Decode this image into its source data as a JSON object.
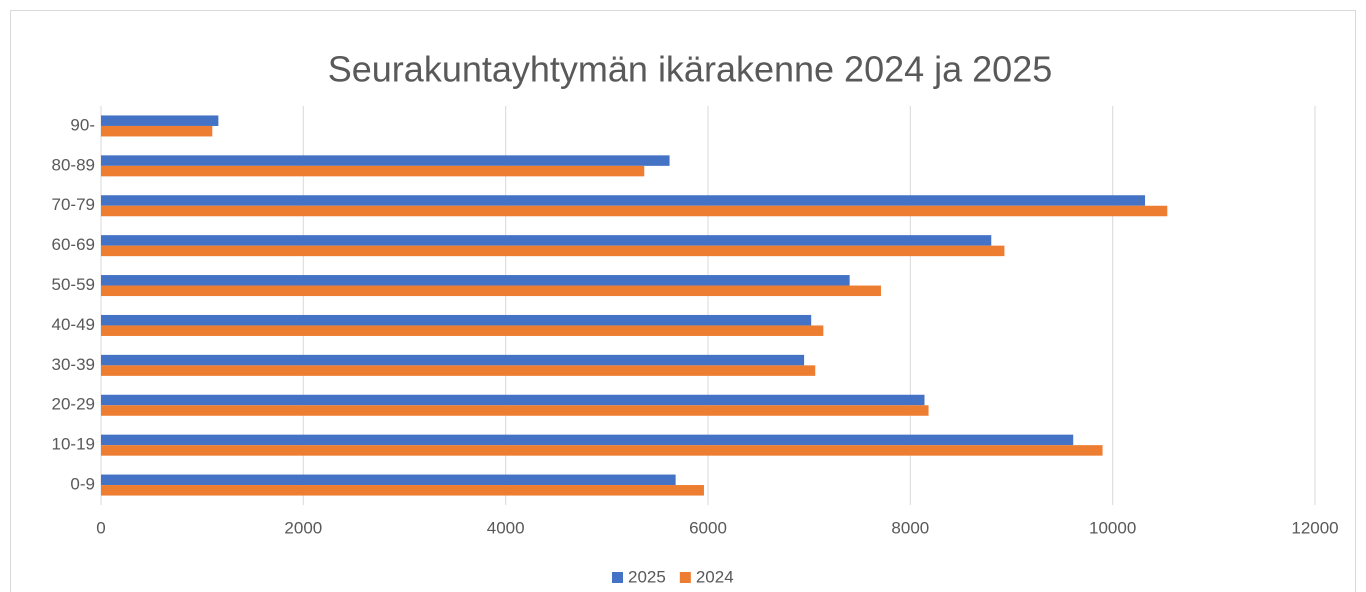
{
  "chart_data": {
    "type": "hbar",
    "title": "Seurakuntayhtymän ikärakenne 2024 ja 2025",
    "categories": [
      "0-9",
      "10-19",
      "20-29",
      "30-39",
      "40-49",
      "50-59",
      "60-69",
      "70-79",
      "80-89",
      "90-"
    ],
    "series": [
      {
        "name": "2025",
        "color": "#4472c4",
        "values": [
          5680,
          9610,
          8140,
          6950,
          7020,
          7400,
          8800,
          10320,
          5620,
          1160
        ]
      },
      {
        "name": "2024",
        "color": "#ed7d31",
        "values": [
          5960,
          9900,
          8180,
          7060,
          7140,
          7710,
          8930,
          10540,
          5370,
          1100
        ]
      }
    ],
    "xlim": [
      0,
      12000
    ],
    "xticks": [
      0,
      2000,
      4000,
      6000,
      8000,
      10000,
      12000
    ],
    "grid": true,
    "legend": "bottom"
  }
}
